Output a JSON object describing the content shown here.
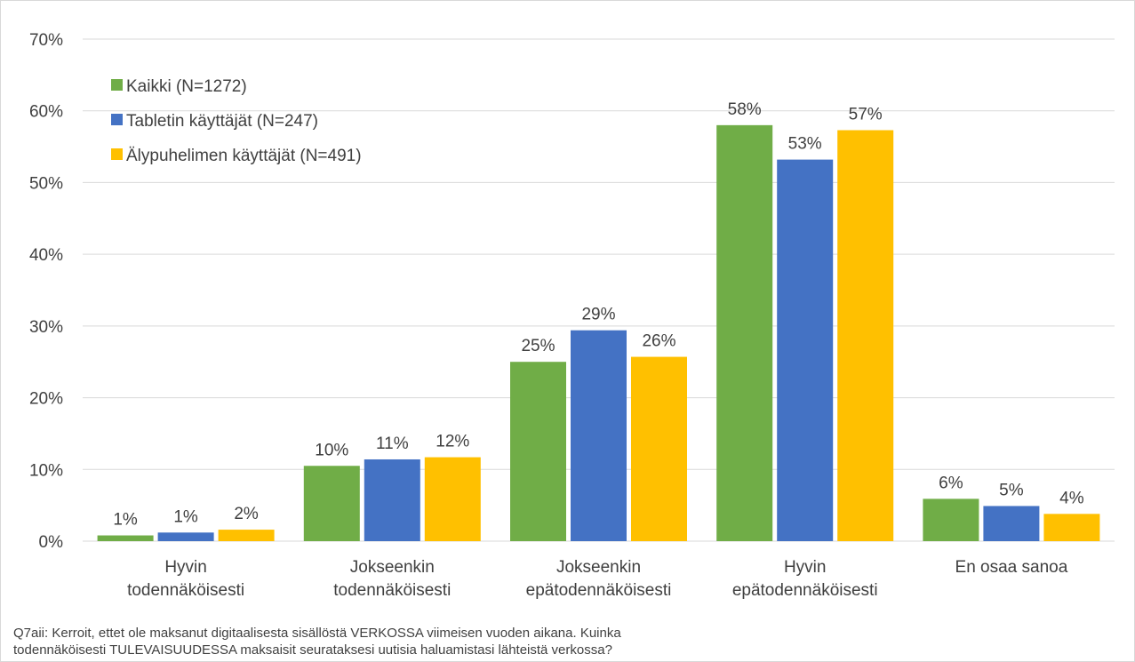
{
  "chart_data": {
    "type": "bar",
    "categories": [
      [
        "Hyvin",
        "todennäköisesti"
      ],
      [
        "Jokseenkin",
        "todennäköisesti"
      ],
      [
        "Jokseenkin",
        "epätodennäköisesti"
      ],
      [
        "Hyvin",
        "epätodennäköisesti"
      ],
      [
        "En osaa sanoa"
      ]
    ],
    "series": [
      {
        "name": "Kaikki (N=1272)",
        "color": "#70ad47",
        "values": [
          0.8,
          10.5,
          25,
          58,
          5.9
        ],
        "labels": [
          "1%",
          "10%",
          "25%",
          "58%",
          "6%"
        ]
      },
      {
        "name": "Tabletin käyttäjät (N=247)",
        "color": "#4472c4",
        "values": [
          1.2,
          11.4,
          29.4,
          53.2,
          4.9
        ],
        "labels": [
          "1%",
          "11%",
          "29%",
          "53%",
          "5%"
        ]
      },
      {
        "name": "Älypuhelimen käyttäjät (N=491)",
        "color": "#ffc000",
        "values": [
          1.6,
          11.7,
          25.7,
          57.3,
          3.8
        ],
        "labels": [
          "2%",
          "12%",
          "26%",
          "57%",
          "4%"
        ]
      }
    ],
    "ylim": [
      0,
      70
    ],
    "yticks": [
      "0%",
      "10%",
      "20%",
      "30%",
      "40%",
      "50%",
      "60%",
      "70%"
    ],
    "grid": true,
    "legend_position": "top-left",
    "title": "",
    "xlabel": "",
    "ylabel": ""
  },
  "footnote": {
    "line1": "Q7aii: Kerroit, ettet ole maksanut digitaalisesta sisällöstä VERKOSSA viimeisen vuoden aikana. Kuinka",
    "line2": "todennäköisesti TULEVAISUUDESSA maksaisit seurataksesi uutisia haluamistasi lähteistä verkossa?"
  }
}
